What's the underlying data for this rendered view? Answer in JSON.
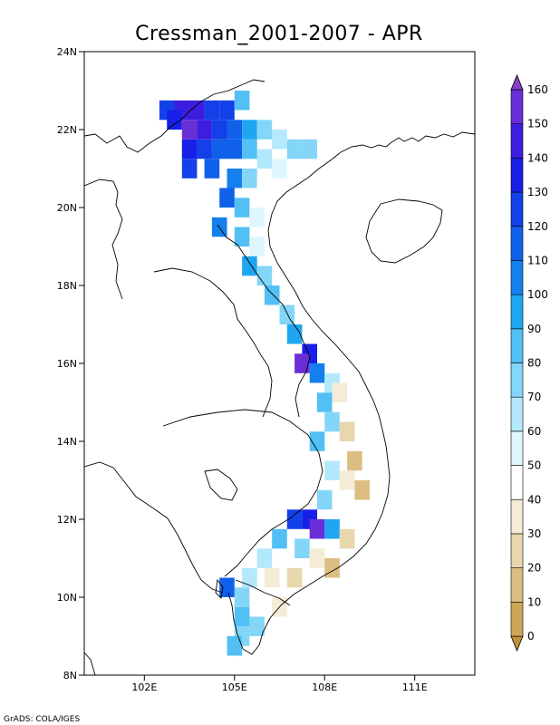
{
  "map": {
    "title": "Cressman_2001-2007 - APR",
    "credit": "GrADS: COLA/IGES",
    "lon_range": [
      100.0,
      113.0
    ],
    "lat_range": [
      8.0,
      24.0
    ],
    "x_ticks": [
      {
        "value": 102,
        "label": "102E"
      },
      {
        "value": 105,
        "label": "105E"
      },
      {
        "value": 108,
        "label": "108E"
      },
      {
        "value": 111,
        "label": "111E"
      }
    ],
    "y_ticks": [
      {
        "value": 24,
        "label": "24N"
      },
      {
        "value": 22,
        "label": "22N"
      },
      {
        "value": 20,
        "label": "20N"
      },
      {
        "value": 18,
        "label": "18N"
      },
      {
        "value": 16,
        "label": "16N"
      },
      {
        "value": 14,
        "label": "14N"
      },
      {
        "value": 12,
        "label": "12N"
      },
      {
        "value": 10,
        "label": "10N"
      },
      {
        "value": 8,
        "label": "8N"
      }
    ]
  },
  "colorbar": {
    "levels": [
      "0",
      "10",
      "20",
      "30",
      "40",
      "50",
      "60",
      "70",
      "80",
      "90",
      "100",
      "110",
      "120",
      "130",
      "140",
      "150",
      "160"
    ],
    "colors": [
      "#c0923a",
      "#cfa658",
      "#dcbe83",
      "#e8d6ac",
      "#f4ecd6",
      "#ffffff",
      "#e0f6ff",
      "#b4e8fc",
      "#84d6f8",
      "#52c0f4",
      "#1ea6f0",
      "#1380ee",
      "#1160ea",
      "#1340e8",
      "#1820e8",
      "#3c1ee0",
      "#6a2ed6",
      "#8a3ccc"
    ]
  },
  "chart_data": {
    "type": "heatmap",
    "title": "Cressman_2001-2007 - APR",
    "x_label": "",
    "y_label": "",
    "x_range": [
      100.0,
      113.0
    ],
    "y_range": [
      8.0,
      24.0
    ],
    "cell_size_deg": 0.25,
    "color_levels": [
      0,
      10,
      20,
      30,
      40,
      50,
      60,
      70,
      80,
      90,
      100,
      110,
      120,
      130,
      140,
      150,
      160
    ],
    "cells": [
      {
        "lat": 22.5,
        "lon": 102.75,
        "value": 122
      },
      {
        "lat": 22.5,
        "lon": 103.25,
        "value": 145
      },
      {
        "lat": 22.5,
        "lon": 103.75,
        "value": 148
      },
      {
        "lat": 22.5,
        "lon": 104.25,
        "value": 128
      },
      {
        "lat": 22.5,
        "lon": 104.75,
        "value": 120
      },
      {
        "lat": 22.75,
        "lon": 105.25,
        "value": 80
      },
      {
        "lat": 22.25,
        "lon": 103.0,
        "value": 138
      },
      {
        "lat": 22.0,
        "lon": 103.5,
        "value": 150
      },
      {
        "lat": 22.0,
        "lon": 104.0,
        "value": 140
      },
      {
        "lat": 22.0,
        "lon": 104.5,
        "value": 125
      },
      {
        "lat": 22.0,
        "lon": 105.0,
        "value": 118
      },
      {
        "lat": 22.0,
        "lon": 105.5,
        "value": 95
      },
      {
        "lat": 22.0,
        "lon": 106.0,
        "value": 75
      },
      {
        "lat": 21.75,
        "lon": 106.5,
        "value": 65
      },
      {
        "lat": 21.5,
        "lon": 107.0,
        "value": 70
      },
      {
        "lat": 21.5,
        "lon": 107.5,
        "value": 72
      },
      {
        "lat": 21.5,
        "lon": 103.5,
        "value": 130
      },
      {
        "lat": 21.5,
        "lon": 104.0,
        "value": 125
      },
      {
        "lat": 21.5,
        "lon": 104.5,
        "value": 118
      },
      {
        "lat": 21.5,
        "lon": 105.0,
        "value": 110
      },
      {
        "lat": 21.5,
        "lon": 105.5,
        "value": 85
      },
      {
        "lat": 21.25,
        "lon": 106.0,
        "value": 60
      },
      {
        "lat": 21.0,
        "lon": 106.5,
        "value": 50
      },
      {
        "lat": 21.0,
        "lon": 103.5,
        "value": 120
      },
      {
        "lat": 21.0,
        "lon": 104.25,
        "value": 115
      },
      {
        "lat": 20.75,
        "lon": 105.0,
        "value": 105
      },
      {
        "lat": 20.75,
        "lon": 105.5,
        "value": 70
      },
      {
        "lat": 20.5,
        "lon": 106.0,
        "value": 45
      },
      {
        "lat": 20.25,
        "lon": 104.75,
        "value": 115
      },
      {
        "lat": 20.0,
        "lon": 105.25,
        "value": 80
      },
      {
        "lat": 19.75,
        "lon": 105.75,
        "value": 55
      },
      {
        "lat": 19.5,
        "lon": 104.5,
        "value": 100
      },
      {
        "lat": 19.25,
        "lon": 105.25,
        "value": 85
      },
      {
        "lat": 19.0,
        "lon": 105.75,
        "value": 50
      },
      {
        "lat": 18.5,
        "lon": 105.5,
        "value": 90
      },
      {
        "lat": 18.25,
        "lon": 106.0,
        "value": 70
      },
      {
        "lat": 17.75,
        "lon": 106.25,
        "value": 80
      },
      {
        "lat": 17.25,
        "lon": 106.75,
        "value": 75
      },
      {
        "lat": 16.75,
        "lon": 107.0,
        "value": 95
      },
      {
        "lat": 16.25,
        "lon": 107.5,
        "value": 130
      },
      {
        "lat": 16.0,
        "lon": 107.25,
        "value": 150
      },
      {
        "lat": 15.75,
        "lon": 107.75,
        "value": 100
      },
      {
        "lat": 15.5,
        "lon": 108.25,
        "value": 60
      },
      {
        "lat": 15.25,
        "lon": 108.5,
        "value": 30
      },
      {
        "lat": 15.0,
        "lon": 108.0,
        "value": 80
      },
      {
        "lat": 14.5,
        "lon": 108.25,
        "value": 70
      },
      {
        "lat": 14.25,
        "lon": 108.75,
        "value": 25
      },
      {
        "lat": 14.0,
        "lon": 107.75,
        "value": 85
      },
      {
        "lat": 13.75,
        "lon": 108.5,
        "value": 45
      },
      {
        "lat": 13.5,
        "lon": 109.0,
        "value": 18
      },
      {
        "lat": 13.25,
        "lon": 108.25,
        "value": 60
      },
      {
        "lat": 13.0,
        "lon": 108.75,
        "value": 30
      },
      {
        "lat": 12.75,
        "lon": 109.25,
        "value": 15
      },
      {
        "lat": 12.5,
        "lon": 108.0,
        "value": 75
      },
      {
        "lat": 12.25,
        "lon": 108.5,
        "value": 40
      },
      {
        "lat": 12.0,
        "lon": 107.0,
        "value": 120
      },
      {
        "lat": 12.0,
        "lon": 107.5,
        "value": 130
      },
      {
        "lat": 11.75,
        "lon": 107.75,
        "value": 150
      },
      {
        "lat": 11.75,
        "lon": 108.25,
        "value": 90
      },
      {
        "lat": 11.5,
        "lon": 108.75,
        "value": 20
      },
      {
        "lat": 11.5,
        "lon": 106.5,
        "value": 85
      },
      {
        "lat": 11.25,
        "lon": 107.25,
        "value": 70
      },
      {
        "lat": 11.0,
        "lon": 106.0,
        "value": 65
      },
      {
        "lat": 11.0,
        "lon": 107.75,
        "value": 35
      },
      {
        "lat": 10.75,
        "lon": 108.25,
        "value": 15
      },
      {
        "lat": 10.5,
        "lon": 105.5,
        "value": 60
      },
      {
        "lat": 10.5,
        "lon": 106.25,
        "value": 35
      },
      {
        "lat": 10.5,
        "lon": 107.0,
        "value": 22
      },
      {
        "lat": 10.25,
        "lon": 104.75,
        "value": 115
      },
      {
        "lat": 10.0,
        "lon": 105.25,
        "value": 75
      },
      {
        "lat": 10.0,
        "lon": 106.0,
        "value": 40
      },
      {
        "lat": 9.75,
        "lon": 106.5,
        "value": 30
      },
      {
        "lat": 9.5,
        "lon": 105.25,
        "value": 80
      },
      {
        "lat": 9.25,
        "lon": 105.75,
        "value": 70
      },
      {
        "lat": 9.0,
        "lon": 105.25,
        "value": 75
      },
      {
        "lat": 8.75,
        "lon": 105.0,
        "value": 80
      }
    ]
  }
}
